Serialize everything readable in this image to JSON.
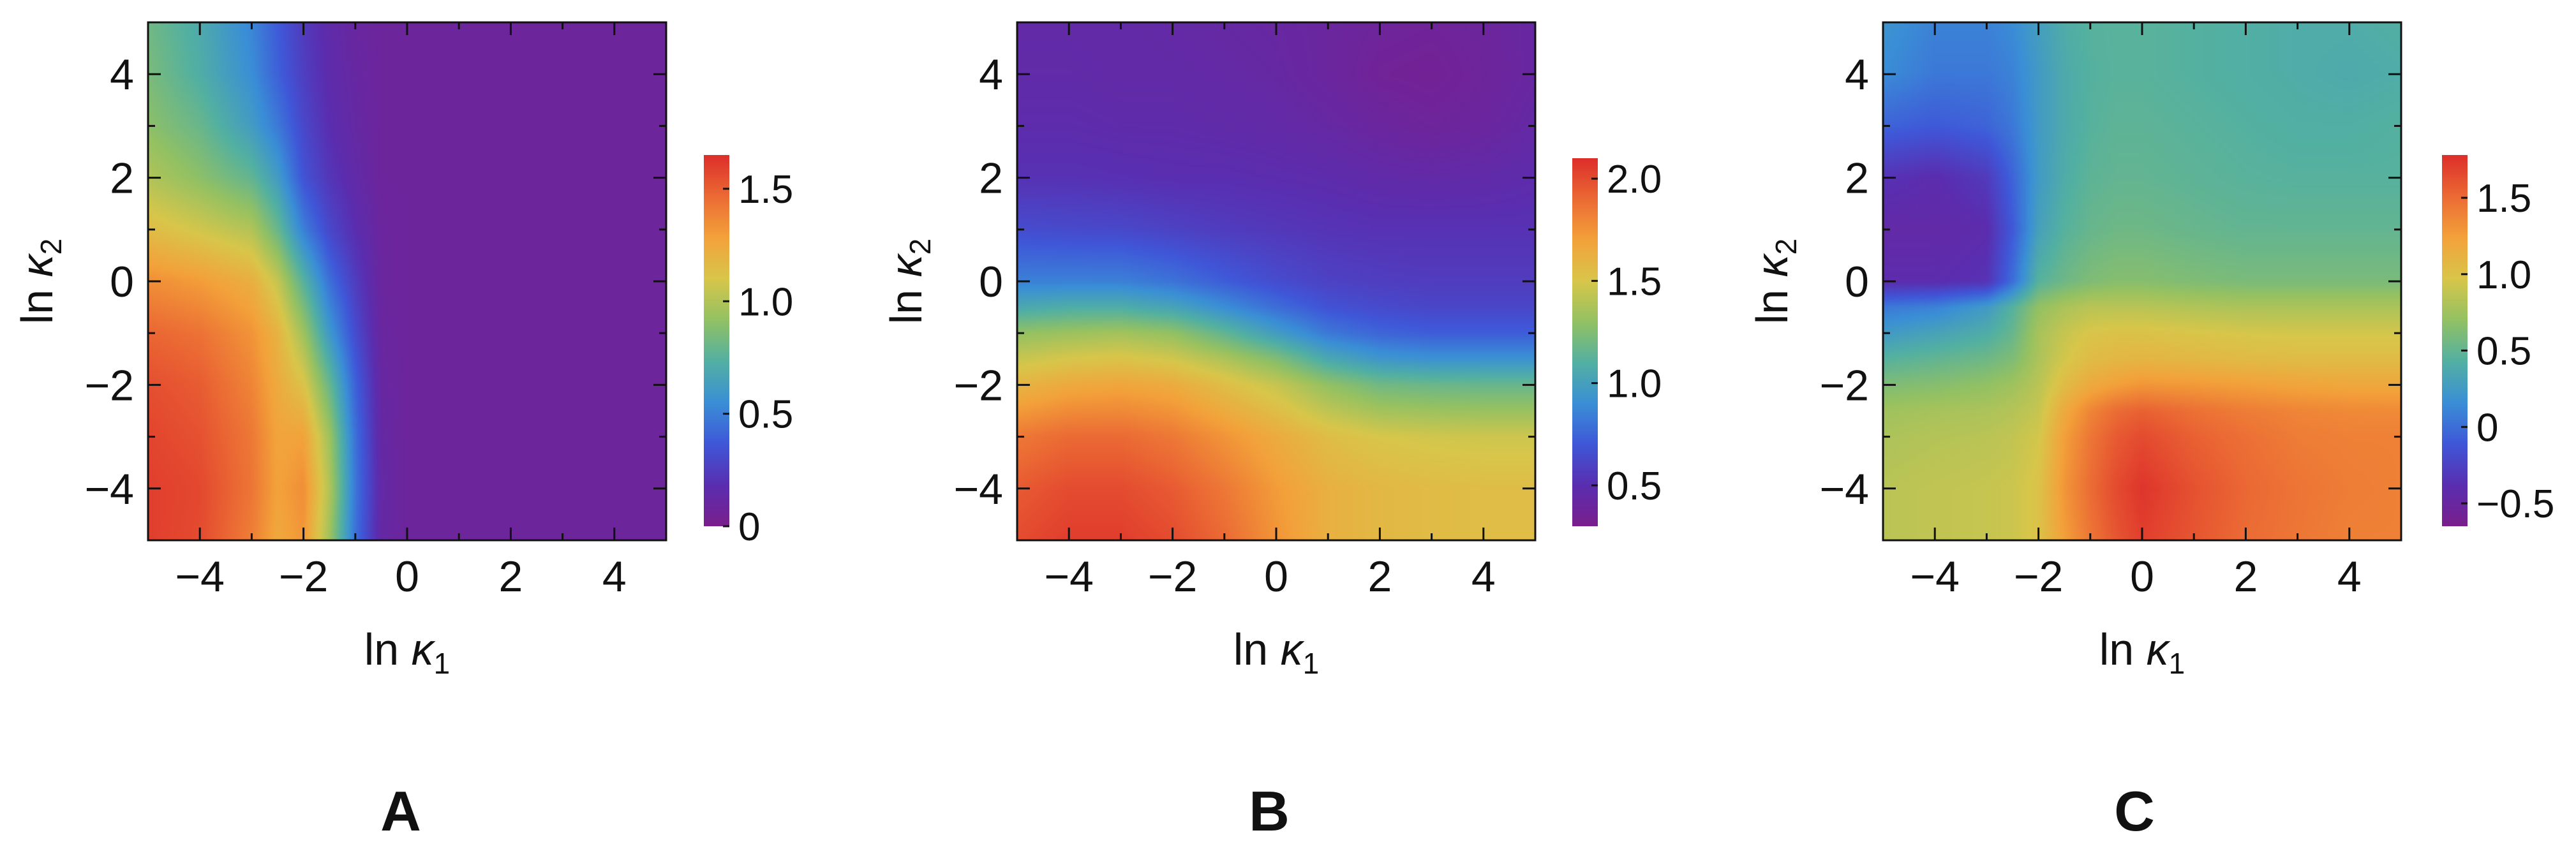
{
  "figure": {
    "panel_labels": [
      "A",
      "B",
      "C"
    ]
  },
  "colorscale": [
    "#7b1e8c",
    "#5a2eb0",
    "#3f57d8",
    "#3a8fd6",
    "#52b0a2",
    "#93c163",
    "#d8c64a",
    "#f3a23a",
    "#eb6a34",
    "#dd2e2b"
  ],
  "chart_data": [
    {
      "type": "heatmap",
      "panel": "A",
      "xlabel": {
        "prefix": "ln ",
        "symbol": "κ",
        "sub": "1"
      },
      "ylabel": {
        "prefix": "ln ",
        "symbol": "κ",
        "sub": "2"
      },
      "xlim": [
        -5,
        5
      ],
      "ylim": [
        -5,
        5
      ],
      "xticks": [
        -4,
        -2,
        0,
        2,
        4
      ],
      "yticks": [
        -4,
        -2,
        0,
        2,
        4
      ],
      "xtick_labels": [
        "−4",
        "−2",
        "0",
        "2",
        "4"
      ],
      "ytick_labels": [
        "−4",
        "−2",
        "0",
        "2",
        "4"
      ],
      "colorbar": {
        "range": [
          0,
          1.65
        ],
        "ticks": [
          0,
          0.5,
          1.0,
          1.5
        ],
        "tick_labels": [
          "0",
          "0.5",
          "1.0",
          "1.5"
        ]
      },
      "grid_x": [
        -5,
        -4,
        -3,
        -2.5,
        -2,
        -1.5,
        -1,
        -0.5,
        0,
        1,
        2,
        3,
        4,
        5
      ],
      "grid_y": [
        -5,
        -4,
        -3,
        -2,
        -1,
        0,
        1,
        2,
        3,
        4,
        5
      ],
      "z": [
        [
          1.6,
          1.56,
          1.4,
          1.25,
          1.32,
          0.95,
          0.45,
          0.12,
          0.08,
          0.08,
          0.08,
          0.08,
          0.08,
          0.08
        ],
        [
          1.6,
          1.57,
          1.43,
          1.28,
          1.35,
          1.0,
          0.47,
          0.13,
          0.08,
          0.08,
          0.08,
          0.08,
          0.08,
          0.08
        ],
        [
          1.58,
          1.54,
          1.42,
          1.27,
          1.28,
          0.95,
          0.45,
          0.12,
          0.08,
          0.08,
          0.08,
          0.08,
          0.08,
          0.08
        ],
        [
          1.55,
          1.51,
          1.38,
          1.24,
          1.12,
          0.8,
          0.4,
          0.11,
          0.08,
          0.08,
          0.08,
          0.08,
          0.08,
          0.08
        ],
        [
          1.48,
          1.44,
          1.33,
          1.2,
          0.95,
          0.6,
          0.32,
          0.1,
          0.08,
          0.08,
          0.08,
          0.08,
          0.08,
          0.08
        ],
        [
          1.35,
          1.3,
          1.22,
          1.05,
          0.75,
          0.45,
          0.25,
          0.09,
          0.08,
          0.08,
          0.08,
          0.08,
          0.08,
          0.08
        ],
        [
          1.15,
          1.08,
          1.0,
          0.8,
          0.5,
          0.3,
          0.18,
          0.09,
          0.08,
          0.08,
          0.08,
          0.08,
          0.08,
          0.08
        ],
        [
          1.0,
          0.9,
          0.78,
          0.62,
          0.35,
          0.22,
          0.14,
          0.08,
          0.08,
          0.08,
          0.08,
          0.08,
          0.08,
          0.08
        ],
        [
          0.9,
          0.8,
          0.62,
          0.48,
          0.3,
          0.18,
          0.12,
          0.08,
          0.08,
          0.08,
          0.08,
          0.08,
          0.08,
          0.08
        ],
        [
          0.85,
          0.72,
          0.55,
          0.4,
          0.26,
          0.16,
          0.11,
          0.08,
          0.08,
          0.08,
          0.08,
          0.08,
          0.08,
          0.08
        ],
        [
          0.82,
          0.7,
          0.52,
          0.38,
          0.24,
          0.15,
          0.1,
          0.08,
          0.08,
          0.08,
          0.08,
          0.08,
          0.08,
          0.08
        ]
      ]
    },
    {
      "type": "heatmap",
      "panel": "B",
      "xlabel": {
        "prefix": "ln ",
        "symbol": "κ",
        "sub": "1"
      },
      "ylabel": {
        "prefix": "ln ",
        "symbol": "κ",
        "sub": "2"
      },
      "xlim": [
        -5,
        5
      ],
      "ylim": [
        -5,
        5
      ],
      "xticks": [
        -4,
        -2,
        0,
        2,
        4
      ],
      "yticks": [
        -4,
        -2,
        0,
        2,
        4
      ],
      "xtick_labels": [
        "−4",
        "−2",
        "0",
        "2",
        "4"
      ],
      "ytick_labels": [
        "−4",
        "−2",
        "0",
        "2",
        "4"
      ],
      "colorbar": {
        "range": [
          0.3,
          2.1
        ],
        "ticks": [
          0.5,
          1.0,
          1.5,
          2.0
        ],
        "tick_labels": [
          "0.5",
          "1.0",
          "1.5",
          "2.0"
        ]
      },
      "grid_x": [
        -5,
        -4,
        -3,
        -2,
        -1,
        0,
        1,
        2,
        3,
        4,
        5
      ],
      "grid_y": [
        -5,
        -4,
        -3,
        -2,
        -1.5,
        -1,
        -0.5,
        0,
        1,
        2,
        3,
        4,
        5
      ],
      "z": [
        [
          2.0,
          2.05,
          2.05,
          2.0,
          1.9,
          1.75,
          1.62,
          1.58,
          1.56,
          1.55,
          1.55
        ],
        [
          1.95,
          2.0,
          2.0,
          1.95,
          1.85,
          1.72,
          1.62,
          1.58,
          1.56,
          1.55,
          1.55
        ],
        [
          1.85,
          1.9,
          1.9,
          1.85,
          1.75,
          1.65,
          1.55,
          1.5,
          1.48,
          1.47,
          1.47
        ],
        [
          1.6,
          1.66,
          1.68,
          1.65,
          1.55,
          1.45,
          1.3,
          1.2,
          1.18,
          1.17,
          1.17
        ],
        [
          1.45,
          1.5,
          1.52,
          1.48,
          1.38,
          1.25,
          1.05,
          0.95,
          0.92,
          0.92,
          0.92
        ],
        [
          1.3,
          1.33,
          1.35,
          1.3,
          1.15,
          0.98,
          0.82,
          0.75,
          0.72,
          0.72,
          0.72
        ],
        [
          1.05,
          1.08,
          1.08,
          1.02,
          0.9,
          0.78,
          0.68,
          0.64,
          0.62,
          0.62,
          0.62
        ],
        [
          0.85,
          0.85,
          0.85,
          0.8,
          0.72,
          0.65,
          0.6,
          0.58,
          0.57,
          0.57,
          0.57
        ],
        [
          0.65,
          0.64,
          0.63,
          0.6,
          0.57,
          0.55,
          0.53,
          0.52,
          0.52,
          0.52,
          0.52
        ],
        [
          0.52,
          0.52,
          0.51,
          0.5,
          0.5,
          0.49,
          0.48,
          0.46,
          0.45,
          0.46,
          0.48
        ],
        [
          0.48,
          0.48,
          0.47,
          0.47,
          0.46,
          0.45,
          0.43,
          0.4,
          0.38,
          0.4,
          0.44
        ],
        [
          0.46,
          0.46,
          0.45,
          0.45,
          0.44,
          0.43,
          0.4,
          0.36,
          0.35,
          0.38,
          0.42
        ],
        [
          0.45,
          0.45,
          0.45,
          0.44,
          0.43,
          0.42,
          0.4,
          0.38,
          0.37,
          0.39,
          0.42
        ]
      ]
    },
    {
      "type": "heatmap",
      "panel": "C",
      "xlabel": {
        "prefix": "ln ",
        "symbol": "κ",
        "sub": "1"
      },
      "ylabel": {
        "prefix": "ln ",
        "symbol": "κ",
        "sub": "2"
      },
      "xlim": [
        -5,
        5
      ],
      "ylim": [
        -5,
        5
      ],
      "xticks": [
        -4,
        -2,
        0,
        2,
        4
      ],
      "yticks": [
        -4,
        -2,
        0,
        2,
        4
      ],
      "xtick_labels": [
        "−4",
        "−2",
        "0",
        "2",
        "4"
      ],
      "ytick_labels": [
        "−4",
        "−2",
        "0",
        "2",
        "4"
      ],
      "colorbar": {
        "range": [
          -0.65,
          1.78
        ],
        "ticks": [
          -0.5,
          0,
          0.5,
          1.0,
          1.5
        ],
        "tick_labels": [
          "−0.5",
          "0",
          "0.5",
          "1.0",
          "1.5"
        ]
      },
      "grid_x": [
        -5,
        -4,
        -3,
        -2.5,
        -2,
        -1.5,
        -1,
        -0.5,
        0,
        1,
        2,
        3,
        4,
        5
      ],
      "grid_y": [
        -5,
        -4,
        -3,
        -2.5,
        -2,
        -1.5,
        -1,
        -0.5,
        0,
        1,
        2,
        3,
        4,
        5
      ],
      "z": [
        [
          0.85,
          0.88,
          0.9,
          0.92,
          1.0,
          1.25,
          1.45,
          1.6,
          1.7,
          1.6,
          1.5,
          1.45,
          1.4,
          1.4
        ],
        [
          0.85,
          0.88,
          0.9,
          0.92,
          1.0,
          1.3,
          1.5,
          1.65,
          1.75,
          1.62,
          1.52,
          1.46,
          1.42,
          1.4
        ],
        [
          0.8,
          0.83,
          0.85,
          0.88,
          0.95,
          1.25,
          1.45,
          1.58,
          1.65,
          1.55,
          1.48,
          1.42,
          1.4,
          1.4
        ],
        [
          0.75,
          0.78,
          0.8,
          0.83,
          0.9,
          1.18,
          1.38,
          1.5,
          1.55,
          1.48,
          1.42,
          1.38,
          1.36,
          1.35
        ],
        [
          0.62,
          0.65,
          0.7,
          0.75,
          0.85,
          1.05,
          1.18,
          1.25,
          1.3,
          1.28,
          1.25,
          1.22,
          1.2,
          1.2
        ],
        [
          0.45,
          0.5,
          0.55,
          0.62,
          0.8,
          0.95,
          1.05,
          1.08,
          1.1,
          1.08,
          1.06,
          1.05,
          1.05,
          1.05
        ],
        [
          0.25,
          0.32,
          0.4,
          0.52,
          0.78,
          0.9,
          0.98,
          1.0,
          1.0,
          0.98,
          0.96,
          0.95,
          0.95,
          0.95
        ],
        [
          0.05,
          0.1,
          0.25,
          0.45,
          0.7,
          0.8,
          0.85,
          0.85,
          0.85,
          0.82,
          0.8,
          0.8,
          0.8,
          0.8
        ],
        [
          -0.4,
          -0.4,
          -0.35,
          0.0,
          0.45,
          0.55,
          0.62,
          0.65,
          0.65,
          0.62,
          0.6,
          0.6,
          0.6,
          0.6
        ],
        [
          -0.45,
          -0.45,
          -0.4,
          -0.1,
          0.3,
          0.45,
          0.52,
          0.55,
          0.55,
          0.52,
          0.5,
          0.5,
          0.5,
          0.5
        ],
        [
          -0.35,
          -0.4,
          -0.3,
          -0.05,
          0.25,
          0.4,
          0.48,
          0.5,
          0.5,
          0.48,
          0.46,
          0.45,
          0.45,
          0.45
        ],
        [
          -0.05,
          -0.1,
          -0.05,
          0.05,
          0.25,
          0.38,
          0.45,
          0.48,
          0.48,
          0.46,
          0.44,
          0.42,
          0.42,
          0.44
        ],
        [
          0.15,
          0.05,
          0.05,
          0.1,
          0.25,
          0.38,
          0.44,
          0.46,
          0.46,
          0.44,
          0.42,
          0.4,
          0.38,
          0.4
        ],
        [
          0.2,
          0.1,
          0.1,
          0.15,
          0.28,
          0.4,
          0.45,
          0.46,
          0.46,
          0.44,
          0.42,
          0.4,
          0.4,
          0.42
        ]
      ]
    }
  ]
}
